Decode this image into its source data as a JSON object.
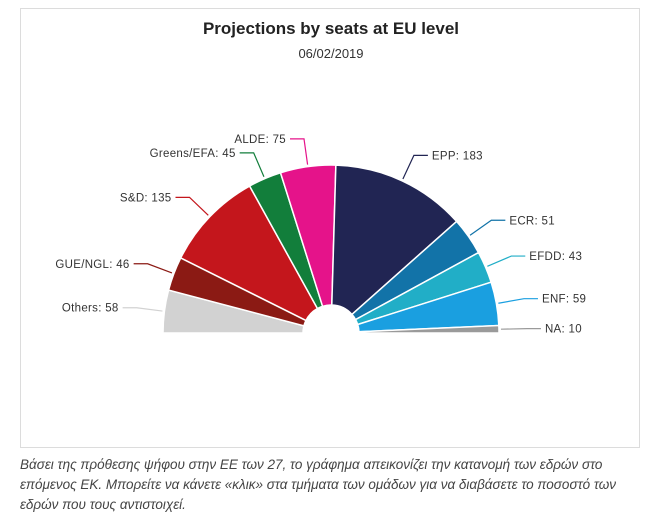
{
  "chart_data": {
    "type": "pie",
    "variant": "parliament-semicircle",
    "title": "Projections by seats at EU level",
    "subtitle": "06/02/2019",
    "series": [
      {
        "name": "Others",
        "value": 58,
        "label": "Others: 58",
        "color": "#d2d2d2"
      },
      {
        "name": "GUE/NGL",
        "value": 46,
        "label": "GUE/NGL: 46",
        "color": "#8b1a14"
      },
      {
        "name": "S&D",
        "value": 135,
        "label": "S&D: 135",
        "color": "#c4161c"
      },
      {
        "name": "Greens/EFA",
        "value": 45,
        "label": "Greens/EFA: 45",
        "color": "#127e3b"
      },
      {
        "name": "ALDE",
        "value": 75,
        "label": "ALDE: 75",
        "color": "#e5138a"
      },
      {
        "name": "EPP",
        "value": 183,
        "label": "EPP: 183",
        "color": "#212553"
      },
      {
        "name": "ECR",
        "value": 51,
        "label": "ECR: 51",
        "color": "#1273a8"
      },
      {
        "name": "EFDD",
        "value": 43,
        "label": "EFDD: 43",
        "color": "#21aec7"
      },
      {
        "name": "ENF",
        "value": 59,
        "label": "ENF: 59",
        "color": "#1a9fe0"
      },
      {
        "name": "NA",
        "value": 10,
        "label": "NA: 10",
        "color": "#9a9a9a"
      }
    ]
  },
  "caption": "Βάσει της πρόθεσης ψήφου στην ΕΕ των 27, το γράφημα απεικονίζει την κατανομή των εδρών στο επόμενος ΕΚ. Μπορείτε να κάνετε «κλικ» στα τμήματα των ομάδων για να διαβάσετε το ποσοστό των εδρών που τους αντιστοιχεί."
}
